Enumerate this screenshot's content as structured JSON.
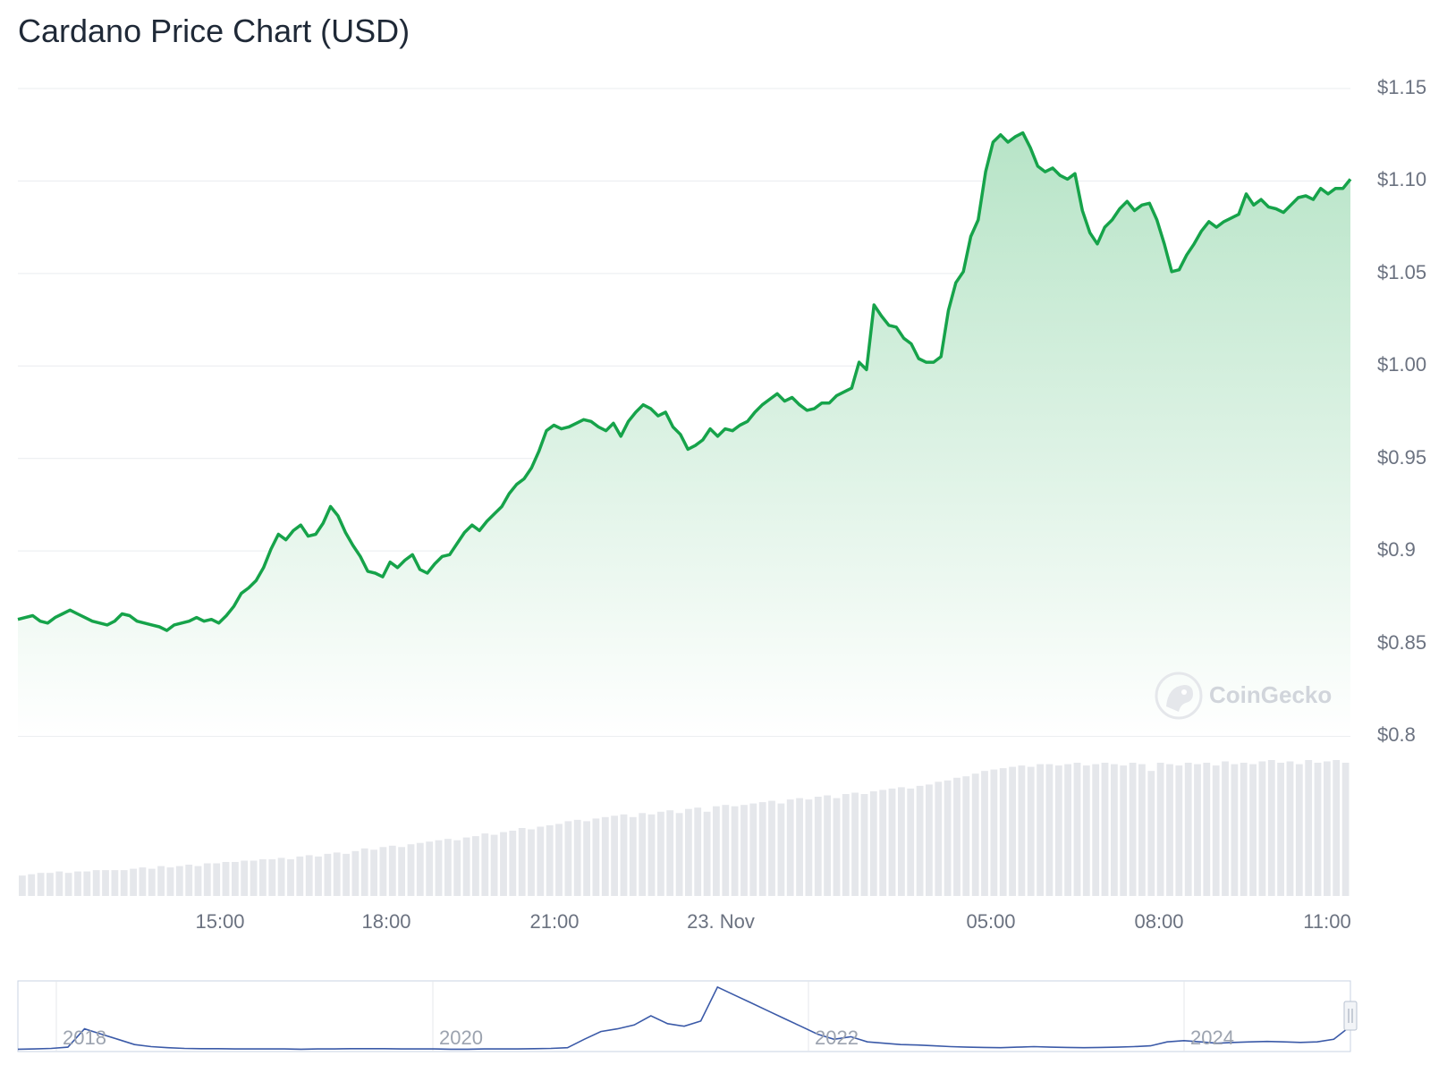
{
  "chart_data": {
    "type": "area",
    "title": "Cardano Price Chart (USD)",
    "currency": "USD",
    "xlabel": "",
    "ylabel": "",
    "ylim": [
      0.8,
      1.15
    ],
    "y_ticks": [
      "$1.15",
      "$1.10",
      "$1.05",
      "$1.00",
      "$0.95",
      "$0.9",
      "$0.85",
      "$0.8"
    ],
    "x_ticks": [
      "15:00",
      "18:00",
      "21:00",
      "23. Nov",
      "05:00",
      "08:00",
      "11:00"
    ],
    "grid": true,
    "colors": {
      "line": "#16a34a",
      "fill_top": "#b7e4c7",
      "volume": "#e5e7eb",
      "navigator": "#3b5aa8"
    },
    "series": [
      {
        "values": [
          0.863,
          0.864,
          0.865,
          0.862,
          0.861,
          0.864,
          0.866,
          0.868,
          0.866,
          0.864,
          0.862,
          0.861,
          0.86,
          0.862,
          0.866,
          0.865,
          0.862,
          0.861,
          0.86,
          0.859,
          0.857,
          0.86,
          0.861,
          0.862,
          0.864,
          0.862,
          0.863,
          0.861,
          0.865,
          0.87,
          0.877,
          0.88,
          0.884,
          0.891,
          0.901,
          0.909,
          0.906,
          0.911,
          0.914,
          0.908,
          0.909,
          0.915,
          0.924,
          0.919,
          0.91,
          0.903,
          0.897,
          0.889,
          0.888,
          0.886,
          0.894,
          0.891,
          0.895,
          0.898,
          0.89,
          0.888,
          0.893,
          0.897,
          0.898,
          0.904,
          0.91,
          0.914,
          0.911,
          0.916,
          0.92,
          0.924,
          0.931,
          0.936,
          0.939,
          0.945,
          0.954,
          0.965,
          0.968,
          0.966,
          0.967,
          0.969,
          0.971,
          0.97,
          0.967,
          0.965,
          0.969,
          0.962,
          0.97,
          0.975,
          0.979,
          0.977,
          0.973,
          0.975,
          0.967,
          0.963,
          0.955,
          0.957,
          0.96,
          0.966,
          0.962,
          0.966,
          0.965,
          0.968,
          0.97,
          0.975,
          0.979,
          0.982,
          0.985,
          0.981,
          0.983,
          0.979,
          0.976,
          0.977,
          0.98,
          0.98,
          0.984,
          0.986,
          0.988,
          1.002,
          0.998,
          1.033,
          1.027,
          1.022,
          1.021,
          1.015,
          1.012,
          1.004,
          1.002,
          1.002,
          1.005,
          1.03,
          1.045,
          1.051,
          1.07,
          1.079,
          1.105,
          1.121,
          1.125,
          1.121,
          1.124,
          1.126,
          1.118,
          1.108,
          1.105,
          1.107,
          1.103,
          1.101,
          1.104,
          1.084,
          1.072,
          1.066,
          1.075,
          1.079,
          1.085,
          1.089,
          1.084,
          1.087,
          1.088,
          1.079,
          1.066,
          1.051,
          1.052,
          1.06,
          1.066,
          1.073,
          1.078,
          1.075,
          1.078,
          1.08,
          1.082,
          1.093,
          1.087,
          1.09,
          1.086,
          1.085,
          1.083,
          1.087,
          1.091,
          1.092,
          1.09,
          1.096,
          1.093,
          1.096,
          1.096,
          1.101
        ]
      }
    ],
    "volume": [
      0.15,
      0.16,
      0.17,
      0.17,
      0.18,
      0.17,
      0.18,
      0.18,
      0.19,
      0.19,
      0.19,
      0.19,
      0.2,
      0.21,
      0.2,
      0.22,
      0.21,
      0.22,
      0.23,
      0.22,
      0.24,
      0.24,
      0.25,
      0.25,
      0.26,
      0.26,
      0.27,
      0.27,
      0.28,
      0.27,
      0.29,
      0.3,
      0.29,
      0.31,
      0.32,
      0.31,
      0.33,
      0.35,
      0.34,
      0.36,
      0.37,
      0.36,
      0.38,
      0.39,
      0.4,
      0.41,
      0.42,
      0.41,
      0.43,
      0.44,
      0.46,
      0.45,
      0.47,
      0.48,
      0.5,
      0.49,
      0.51,
      0.52,
      0.53,
      0.55,
      0.56,
      0.55,
      0.57,
      0.58,
      0.59,
      0.6,
      0.58,
      0.61,
      0.6,
      0.62,
      0.63,
      0.61,
      0.64,
      0.65,
      0.62,
      0.66,
      0.67,
      0.66,
      0.67,
      0.68,
      0.69,
      0.7,
      0.68,
      0.71,
      0.72,
      0.71,
      0.73,
      0.74,
      0.72,
      0.75,
      0.76,
      0.75,
      0.77,
      0.78,
      0.79,
      0.8,
      0.79,
      0.81,
      0.82,
      0.84,
      0.85,
      0.87,
      0.88,
      0.9,
      0.92,
      0.93,
      0.94,
      0.95,
      0.96,
      0.95,
      0.97,
      0.97,
      0.96,
      0.97,
      0.98,
      0.96,
      0.97,
      0.98,
      0.97,
      0.96,
      0.98,
      0.97,
      0.92,
      0.98,
      0.97,
      0.96,
      0.98,
      0.97,
      0.98,
      0.96,
      0.99,
      0.97,
      0.98,
      0.97,
      0.99,
      1.0,
      0.98,
      0.99,
      0.97,
      1.0,
      0.98,
      0.99,
      1.0,
      0.98
    ]
  },
  "navigator": {
    "year_labels": [
      "2018",
      "2020",
      "2022",
      "2024"
    ],
    "values": [
      0.02,
      0.03,
      0.05,
      0.1,
      0.8,
      0.6,
      0.4,
      0.2,
      0.12,
      0.08,
      0.05,
      0.04,
      0.04,
      0.03,
      0.03,
      0.03,
      0.03,
      0.02,
      0.03,
      0.03,
      0.04,
      0.04,
      0.04,
      0.03,
      0.03,
      0.03,
      0.02,
      0.02,
      0.03,
      0.03,
      0.03,
      0.04,
      0.05,
      0.08,
      0.4,
      0.7,
      0.8,
      0.95,
      1.3,
      1.0,
      0.9,
      1.1,
      2.4,
      2.1,
      1.8,
      1.5,
      1.2,
      0.9,
      0.6,
      0.4,
      0.5,
      0.3,
      0.25,
      0.2,
      0.18,
      0.15,
      0.12,
      0.1,
      0.09,
      0.08,
      0.1,
      0.12,
      0.1,
      0.09,
      0.08,
      0.09,
      0.1,
      0.12,
      0.15,
      0.3,
      0.35,
      0.3,
      0.25,
      0.28,
      0.3,
      0.32,
      0.3,
      0.28,
      0.3,
      0.4,
      0.9
    ]
  },
  "branding": {
    "watermark": "CoinGecko",
    "icon": "gecko-logo-icon"
  }
}
